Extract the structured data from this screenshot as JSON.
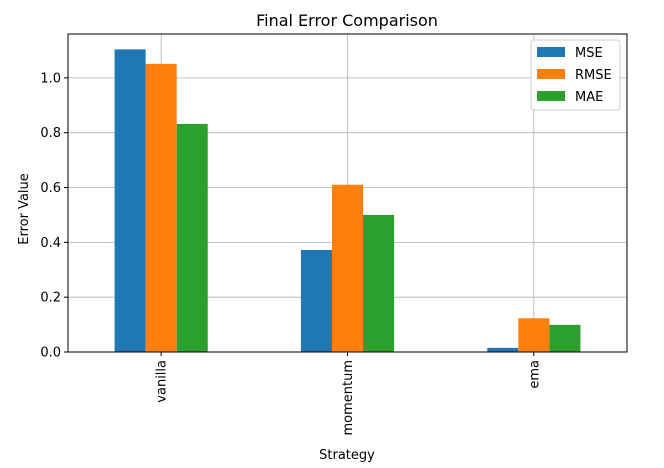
{
  "chart_data": {
    "type": "bar",
    "title": "Final Error Comparison",
    "xlabel": "Strategy",
    "ylabel": "Error Value",
    "categories": [
      "vanilla",
      "momentum",
      "ema"
    ],
    "series": [
      {
        "name": "MSE",
        "color": "#1f77b4",
        "values": [
          1.104,
          0.372,
          0.015
        ]
      },
      {
        "name": "RMSE",
        "color": "#ff7f0e",
        "values": [
          1.051,
          0.61,
          0.123
        ]
      },
      {
        "name": "MAE",
        "color": "#2ca02c",
        "values": [
          0.832,
          0.5,
          0.099
        ]
      }
    ],
    "ylim": [
      0,
      1.16
    ],
    "yticks": [
      0.0,
      0.2,
      0.4,
      0.6,
      0.8,
      1.0
    ],
    "ytick_labels": [
      "0.0",
      "0.2",
      "0.4",
      "0.6",
      "0.8",
      "1.0"
    ],
    "grid": true,
    "legend_position": "top-right"
  }
}
